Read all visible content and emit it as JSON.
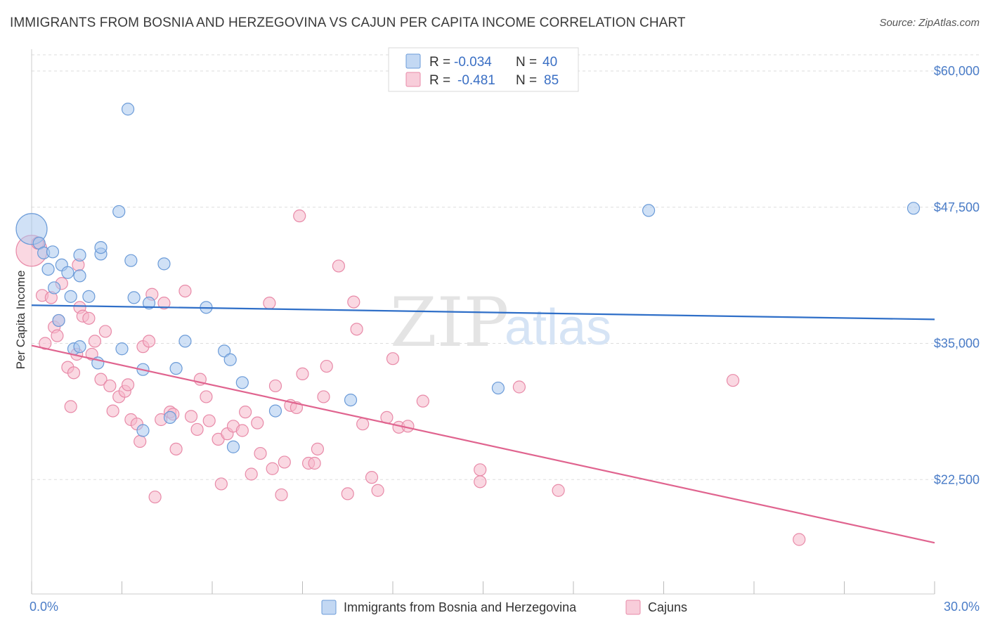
{
  "title": "IMMIGRANTS FROM BOSNIA AND HERZEGOVINA VS CAJUN PER CAPITA INCOME CORRELATION CHART",
  "source": "Source: ZipAtlas.com",
  "watermark": {
    "zip": "ZIP",
    "atlas": "atlas"
  },
  "colors": {
    "blue_fill": "#a9c8ee",
    "blue_stroke": "#6b9bd8",
    "blue_line": "#2f6fc8",
    "pink_fill": "#f5b8cb",
    "pink_stroke": "#e88aa8",
    "pink_line": "#e0648f",
    "grid": "#dddddd",
    "axis_text": "#4a7cc7"
  },
  "legend": {
    "r_label": "R =",
    "n_label": "N =",
    "series": [
      {
        "r": "-0.034",
        "n": "40"
      },
      {
        "r": "-0.481",
        "n": "85"
      }
    ]
  },
  "chart_data": {
    "type": "scatter",
    "title": "IMMIGRANTS FROM BOSNIA AND HERZEGOVINA VS CAJUN PER CAPITA INCOME CORRELATION CHART",
    "xlabel": "",
    "ylabel": "Per Capita Income",
    "xlim": [
      0,
      30
    ],
    "ylim": [
      12000,
      62000
    ],
    "x_tick_labels": [
      "0.0%",
      "30.0%"
    ],
    "y_ticks": [
      22500,
      35000,
      47500,
      60000
    ],
    "y_tick_labels": [
      "$22,500",
      "$35,000",
      "$47,500",
      "$60,000"
    ],
    "series": [
      {
        "name": "Immigrants from Bosnia and Herzegovina",
        "color": "blue",
        "trend": {
          "x0": 0,
          "y0": 38500,
          "x1": 30,
          "y1": 37200
        },
        "points": [
          {
            "x": 0.0,
            "y": 45500,
            "big": true
          },
          {
            "x": 0.25,
            "y": 44200
          },
          {
            "x": 0.4,
            "y": 43300
          },
          {
            "x": 0.55,
            "y": 41800
          },
          {
            "x": 0.7,
            "y": 43400
          },
          {
            "x": 0.75,
            "y": 40100
          },
          {
            "x": 1.0,
            "y": 42200
          },
          {
            "x": 1.2,
            "y": 41500
          },
          {
            "x": 1.3,
            "y": 39300
          },
          {
            "x": 1.6,
            "y": 41200
          },
          {
            "x": 1.6,
            "y": 43100
          },
          {
            "x": 0.9,
            "y": 37100
          },
          {
            "x": 1.4,
            "y": 34500
          },
          {
            "x": 1.6,
            "y": 34700
          },
          {
            "x": 1.9,
            "y": 39300
          },
          {
            "x": 2.3,
            "y": 43200
          },
          {
            "x": 2.3,
            "y": 43800
          },
          {
            "x": 2.2,
            "y": 33200
          },
          {
            "x": 2.9,
            "y": 47100
          },
          {
            "x": 3.0,
            "y": 34500
          },
          {
            "x": 3.2,
            "y": 56500
          },
          {
            "x": 3.3,
            "y": 42600
          },
          {
            "x": 3.4,
            "y": 39200
          },
          {
            "x": 3.7,
            "y": 32600
          },
          {
            "x": 3.9,
            "y": 38700
          },
          {
            "x": 3.7,
            "y": 27000
          },
          {
            "x": 4.4,
            "y": 42300
          },
          {
            "x": 4.6,
            "y": 28200
          },
          {
            "x": 4.8,
            "y": 32700
          },
          {
            "x": 5.1,
            "y": 35200
          },
          {
            "x": 5.8,
            "y": 38300
          },
          {
            "x": 6.4,
            "y": 34300
          },
          {
            "x": 6.6,
            "y": 33500
          },
          {
            "x": 6.7,
            "y": 25500
          },
          {
            "x": 7.0,
            "y": 31400
          },
          {
            "x": 8.1,
            "y": 28800
          },
          {
            "x": 10.6,
            "y": 29800
          },
          {
            "x": 15.5,
            "y": 30900
          },
          {
            "x": 20.5,
            "y": 47200
          },
          {
            "x": 29.3,
            "y": 47400
          }
        ]
      },
      {
        "name": "Cajuns",
        "color": "pink",
        "trend": {
          "x0": 0,
          "y0": 34800,
          "x1": 30,
          "y1": 16700
        },
        "points": [
          {
            "x": 0.0,
            "y": 43500,
            "big": true
          },
          {
            "x": 0.2,
            "y": 44200
          },
          {
            "x": 0.35,
            "y": 39400
          },
          {
            "x": 0.45,
            "y": 35000
          },
          {
            "x": 0.65,
            "y": 39200
          },
          {
            "x": 0.75,
            "y": 36500
          },
          {
            "x": 0.85,
            "y": 35700
          },
          {
            "x": 0.9,
            "y": 37100
          },
          {
            "x": 1.0,
            "y": 40500
          },
          {
            "x": 1.2,
            "y": 32800
          },
          {
            "x": 1.3,
            "y": 29200
          },
          {
            "x": 1.4,
            "y": 32300
          },
          {
            "x": 1.5,
            "y": 34000
          },
          {
            "x": 1.55,
            "y": 42200
          },
          {
            "x": 1.6,
            "y": 38300
          },
          {
            "x": 1.7,
            "y": 37500
          },
          {
            "x": 1.9,
            "y": 37300
          },
          {
            "x": 2.0,
            "y": 34000
          },
          {
            "x": 2.1,
            "y": 35200
          },
          {
            "x": 2.3,
            "y": 31700
          },
          {
            "x": 2.45,
            "y": 36100
          },
          {
            "x": 2.6,
            "y": 31100
          },
          {
            "x": 2.7,
            "y": 28800
          },
          {
            "x": 2.9,
            "y": 30100
          },
          {
            "x": 3.1,
            "y": 30600
          },
          {
            "x": 3.2,
            "y": 31200
          },
          {
            "x": 3.3,
            "y": 28000
          },
          {
            "x": 3.5,
            "y": 27600
          },
          {
            "x": 3.6,
            "y": 26000
          },
          {
            "x": 3.7,
            "y": 34700
          },
          {
            "x": 3.9,
            "y": 35200
          },
          {
            "x": 4.0,
            "y": 39500
          },
          {
            "x": 4.1,
            "y": 20900
          },
          {
            "x": 4.3,
            "y": 28000
          },
          {
            "x": 4.4,
            "y": 38700
          },
          {
            "x": 4.6,
            "y": 28700
          },
          {
            "x": 4.7,
            "y": 28500
          },
          {
            "x": 4.8,
            "y": 25300
          },
          {
            "x": 5.1,
            "y": 39800
          },
          {
            "x": 5.3,
            "y": 28300
          },
          {
            "x": 5.5,
            "y": 27100
          },
          {
            "x": 5.6,
            "y": 31700
          },
          {
            "x": 5.8,
            "y": 30100
          },
          {
            "x": 5.9,
            "y": 27900
          },
          {
            "x": 6.2,
            "y": 26200
          },
          {
            "x": 6.3,
            "y": 22100
          },
          {
            "x": 6.5,
            "y": 26700
          },
          {
            "x": 6.7,
            "y": 27400
          },
          {
            "x": 7.0,
            "y": 27000
          },
          {
            "x": 7.1,
            "y": 28700
          },
          {
            "x": 7.3,
            "y": 23000
          },
          {
            "x": 7.5,
            "y": 27700
          },
          {
            "x": 7.6,
            "y": 24900
          },
          {
            "x": 7.9,
            "y": 38700
          },
          {
            "x": 8.0,
            "y": 23500
          },
          {
            "x": 8.1,
            "y": 31100
          },
          {
            "x": 8.3,
            "y": 21100
          },
          {
            "x": 8.4,
            "y": 24100
          },
          {
            "x": 8.6,
            "y": 29300
          },
          {
            "x": 8.8,
            "y": 29100
          },
          {
            "x": 8.9,
            "y": 46700
          },
          {
            "x": 9.0,
            "y": 32200
          },
          {
            "x": 9.2,
            "y": 24000
          },
          {
            "x": 9.4,
            "y": 24000
          },
          {
            "x": 9.5,
            "y": 25300
          },
          {
            "x": 9.7,
            "y": 30100
          },
          {
            "x": 9.8,
            "y": 32900
          },
          {
            "x": 10.2,
            "y": 42100
          },
          {
            "x": 10.5,
            "y": 21200
          },
          {
            "x": 10.7,
            "y": 38800
          },
          {
            "x": 10.8,
            "y": 36300
          },
          {
            "x": 11.0,
            "y": 27600
          },
          {
            "x": 11.3,
            "y": 22700
          },
          {
            "x": 11.5,
            "y": 21500
          },
          {
            "x": 11.8,
            "y": 28200
          },
          {
            "x": 12.0,
            "y": 33600
          },
          {
            "x": 12.2,
            "y": 27300
          },
          {
            "x": 12.5,
            "y": 27400
          },
          {
            "x": 13.0,
            "y": 29700
          },
          {
            "x": 14.9,
            "y": 23400
          },
          {
            "x": 14.9,
            "y": 22300
          },
          {
            "x": 16.2,
            "y": 31000
          },
          {
            "x": 17.5,
            "y": 21500
          },
          {
            "x": 23.3,
            "y": 31600
          },
          {
            "x": 25.5,
            "y": 17000
          }
        ]
      }
    ]
  },
  "bottom_legend": [
    {
      "label": "Immigrants from Bosnia and Herzegovina"
    },
    {
      "label": "Cajuns"
    }
  ]
}
